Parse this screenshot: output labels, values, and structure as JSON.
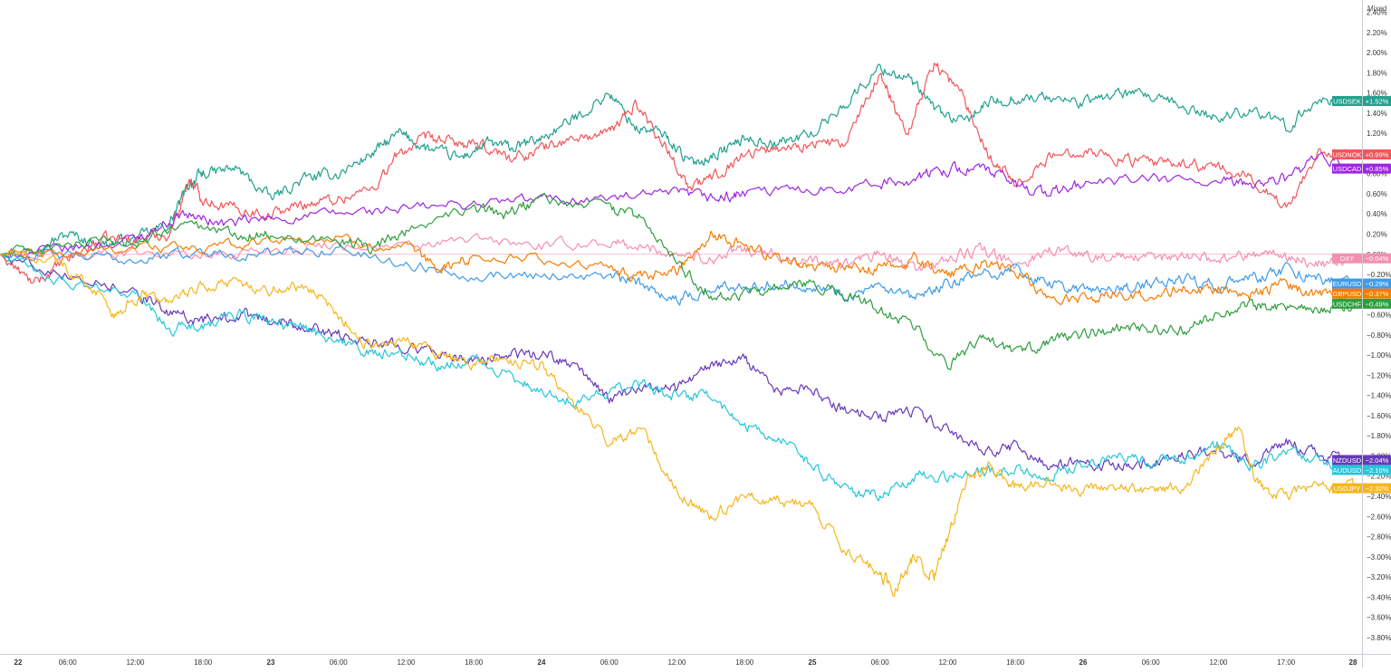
{
  "scale_mode_label": "Mixed",
  "chart_data": {
    "type": "line",
    "title": "",
    "ylabel": "",
    "xlabel": "",
    "y_unit": "%",
    "ylim": [
      -3.9,
      2.45
    ],
    "y_ticks": [
      2.4,
      2.2,
      2.0,
      1.8,
      1.6,
      1.4,
      1.2,
      1.0,
      0.8,
      0.6,
      0.4,
      0.2,
      0.0,
      -0.2,
      -0.4,
      -0.6,
      -0.8,
      -1.0,
      -1.2,
      -1.4,
      -1.6,
      -1.8,
      -2.0,
      -2.2,
      -2.4,
      -2.6,
      -2.8,
      -3.0,
      -3.2,
      -3.4,
      -3.6,
      -3.8
    ],
    "x_ticks": [
      "22",
      "06:00",
      "12:00",
      "18:00",
      "23",
      "06:00",
      "12:00",
      "18:00",
      "24",
      "06:00",
      "12:00",
      "18:00",
      "25",
      "06:00",
      "12:00",
      "18:00",
      "26",
      "06:00",
      "12:00",
      "17:00",
      "28"
    ],
    "x_tick_bold": [
      true,
      false,
      false,
      false,
      true,
      false,
      false,
      false,
      true,
      false,
      false,
      false,
      true,
      false,
      false,
      false,
      true,
      false,
      false,
      false,
      true
    ],
    "x_range": [
      0,
      20
    ],
    "grid": false,
    "zero_line": true,
    "series": [
      {
        "name": "USDSEK",
        "color": "#22a18e",
        "last_label": "+1.52%",
        "x": [
          0,
          0.5,
          1,
          1.5,
          2,
          2.5,
          2.8,
          3,
          3.5,
          4,
          4.5,
          5,
          5.5,
          5.9,
          6.3,
          6.8,
          7.2,
          7.6,
          8,
          8.5,
          9,
          9.4,
          9.8,
          10.2,
          10.6,
          11,
          11.5,
          12,
          12.5,
          13,
          13.4,
          13.8,
          14.2,
          14.6,
          15,
          15.5,
          16,
          16.5,
          17,
          17.5,
          18,
          18.5,
          19,
          19.5,
          20
        ],
        "y": [
          0,
          0.05,
          0.2,
          0.1,
          0.15,
          0.3,
          0.7,
          0.8,
          0.85,
          0.55,
          0.75,
          0.8,
          1.0,
          1.2,
          1.05,
          0.95,
          1.1,
          1.05,
          1.15,
          1.35,
          1.6,
          1.25,
          1.2,
          0.9,
          1.0,
          1.15,
          1.1,
          1.2,
          1.5,
          1.85,
          1.75,
          1.45,
          1.3,
          1.5,
          1.55,
          1.55,
          1.5,
          1.6,
          1.55,
          1.45,
          1.35,
          1.45,
          1.25,
          1.55,
          1.52
        ]
      },
      {
        "name": "USDNOK",
        "color": "#f0565a",
        "last_label": "+0.99%",
        "x": [
          0,
          0.5,
          1,
          1.5,
          2,
          2.5,
          2.8,
          3,
          3.5,
          4,
          4.5,
          5,
          5.5,
          5.9,
          6.3,
          6.8,
          7.2,
          7.6,
          8,
          8.5,
          9,
          9.4,
          9.8,
          10.2,
          10.6,
          11,
          11.5,
          12,
          12.5,
          13,
          13.4,
          13.8,
          14.2,
          14.6,
          15,
          15.5,
          16,
          16.5,
          17,
          17.5,
          18,
          18.5,
          19,
          19.5,
          20
        ],
        "y": [
          0,
          -0.3,
          -0.05,
          0.15,
          0.15,
          0.2,
          0.75,
          0.55,
          0.45,
          0.4,
          0.5,
          0.55,
          0.65,
          1.0,
          1.15,
          1.1,
          1.05,
          0.95,
          1.05,
          1.15,
          1.2,
          1.5,
          1.1,
          0.65,
          0.8,
          1.0,
          1.05,
          1.1,
          1.1,
          1.8,
          1.2,
          1.9,
          1.6,
          1.0,
          0.7,
          0.95,
          1.05,
          0.95,
          0.9,
          0.9,
          0.85,
          0.75,
          0.45,
          1.05,
          0.99
        ]
      },
      {
        "name": "USDCAD",
        "color": "#9c27e0",
        "last_label": "+0.85%",
        "x": [
          0,
          1,
          2,
          2.7,
          3.3,
          4,
          5,
          6,
          7,
          8,
          9,
          10,
          10.6,
          11,
          12,
          13,
          13.5,
          14,
          14.5,
          15,
          15.5,
          16,
          17,
          18,
          18.5,
          19,
          19.5,
          20
        ],
        "y": [
          0,
          0.05,
          0.15,
          0.4,
          0.3,
          0.35,
          0.4,
          0.45,
          0.5,
          0.55,
          0.55,
          0.6,
          0.55,
          0.6,
          0.65,
          0.7,
          0.75,
          0.85,
          0.85,
          0.7,
          0.6,
          0.7,
          0.75,
          0.7,
          0.7,
          0.75,
          0.95,
          0.85
        ]
      },
      {
        "name": "DXY",
        "color": "#f48fb1",
        "last_label": "-0.04%",
        "x": [
          0,
          1,
          2,
          3,
          4,
          5,
          6,
          7,
          8,
          9,
          9.5,
          10,
          10.5,
          11,
          11.5,
          12,
          12.5,
          13,
          13.5,
          14,
          14.5,
          15,
          15.5,
          16,
          16.5,
          17,
          17.5,
          18,
          18.5,
          19,
          19.5,
          20
        ],
        "y": [
          0,
          -0.02,
          0.04,
          -0.02,
          0.05,
          0.1,
          0.06,
          0.15,
          0.08,
          0.12,
          0.06,
          0.02,
          -0.05,
          0.05,
          -0.02,
          -0.08,
          -0.1,
          0.0,
          -0.15,
          -0.05,
          0.05,
          -0.12,
          0.05,
          0.0,
          -0.03,
          -0.05,
          0.0,
          -0.05,
          0.02,
          -0.02,
          -0.1,
          -0.04
        ]
      },
      {
        "name": "EURUSD",
        "color": "#3f9be6",
        "last_label": "-0.29%",
        "x": [
          0,
          1,
          2,
          3,
          4,
          5,
          6,
          7,
          8,
          9,
          9.5,
          10,
          10.5,
          11,
          11.5,
          12,
          12.5,
          13,
          13.5,
          14,
          14.5,
          15,
          15.5,
          16,
          16.5,
          17,
          17.5,
          18,
          18.5,
          19,
          19.5,
          20
        ],
        "y": [
          0,
          -0.02,
          -0.05,
          0.02,
          0.0,
          0.05,
          -0.1,
          -0.2,
          -0.2,
          -0.22,
          -0.3,
          -0.45,
          -0.35,
          -0.3,
          -0.3,
          -0.3,
          -0.4,
          -0.35,
          -0.45,
          -0.3,
          -0.2,
          -0.15,
          -0.3,
          -0.35,
          -0.35,
          -0.3,
          -0.25,
          -0.3,
          -0.25,
          -0.15,
          -0.25,
          -0.29
        ]
      },
      {
        "name": "GBPUSD",
        "color": "#f57c00",
        "last_label": "-0.37%",
        "x": [
          0,
          1,
          2,
          3,
          4,
          5,
          6,
          6.5,
          7,
          8,
          9,
          9.5,
          10,
          10.5,
          11,
          11.5,
          12,
          12.5,
          13,
          13.5,
          14,
          14.5,
          15,
          15.5,
          16,
          16.5,
          17,
          17.5,
          18,
          18.5,
          19,
          19.5,
          20
        ],
        "y": [
          0,
          0.0,
          0.08,
          0.05,
          0.15,
          0.15,
          0.05,
          -0.15,
          -0.02,
          -0.05,
          -0.15,
          -0.25,
          -0.15,
          0.2,
          0.1,
          -0.05,
          -0.1,
          -0.15,
          -0.15,
          -0.05,
          -0.2,
          -0.1,
          -0.15,
          -0.45,
          -0.45,
          -0.4,
          -0.4,
          -0.35,
          -0.35,
          -0.4,
          -0.3,
          -0.4,
          -0.37
        ]
      },
      {
        "name": "USDCHF",
        "color": "#2e9e3e",
        "last_label": "-0.49%",
        "x": [
          0,
          1,
          2,
          2.7,
          3.5,
          4,
          5,
          5.5,
          6,
          7,
          7.5,
          8,
          9,
          9.5,
          10,
          10.5,
          11,
          11.5,
          12,
          12.5,
          13,
          13.5,
          14,
          14.5,
          15,
          15.5,
          16,
          16.5,
          17,
          17.5,
          18,
          18.5,
          19,
          19.5,
          20
        ],
        "y": [
          0,
          0.1,
          0.1,
          0.3,
          0.2,
          0.2,
          0.15,
          0.05,
          0.25,
          0.45,
          0.4,
          0.55,
          0.45,
          0.35,
          -0.1,
          -0.4,
          -0.4,
          -0.35,
          -0.3,
          -0.4,
          -0.55,
          -0.7,
          -1.1,
          -0.85,
          -1.0,
          -0.85,
          -0.8,
          -0.75,
          -0.75,
          -0.75,
          -0.6,
          -0.5,
          -0.55,
          -0.55,
          -0.49
        ]
      },
      {
        "name": "NZDUSD",
        "color": "#673ab7",
        "last_label": "-2.04%",
        "x": [
          0,
          1,
          2,
          2.5,
          3,
          3.5,
          4,
          4.5,
          5,
          5.5,
          6,
          6.5,
          7,
          7.5,
          8,
          8.5,
          9,
          9.5,
          10,
          10.5,
          11,
          11.5,
          12,
          12.5,
          13,
          13.5,
          14,
          14.5,
          15,
          15.5,
          16,
          16.5,
          17,
          17.5,
          18,
          18.5,
          19,
          19.5,
          20
        ],
        "y": [
          0,
          -0.2,
          -0.35,
          -0.6,
          -0.65,
          -0.6,
          -0.65,
          -0.7,
          -0.8,
          -0.85,
          -0.9,
          -1.0,
          -1.05,
          -1.0,
          -1.0,
          -1.1,
          -1.45,
          -1.3,
          -1.35,
          -1.1,
          -1.05,
          -1.35,
          -1.35,
          -1.55,
          -1.6,
          -1.55,
          -1.75,
          -1.95,
          -1.9,
          -2.1,
          -2.05,
          -2.1,
          -2.05,
          -2.0,
          -1.95,
          -2.05,
          -1.85,
          -2.0,
          -2.04
        ]
      },
      {
        "name": "AUDUSD",
        "color": "#26c6da",
        "last_label": "-2.10%",
        "x": [
          0,
          1,
          2,
          2.5,
          3,
          3.5,
          4,
          4.5,
          5,
          5.5,
          6,
          6.5,
          7,
          7.5,
          8,
          8.5,
          9,
          9.5,
          10,
          10.5,
          11,
          11.5,
          12,
          12.5,
          13,
          13.5,
          14,
          14.5,
          15,
          15.5,
          16,
          16.5,
          17,
          17.5,
          18,
          18.5,
          19,
          19.5,
          20
        ],
        "y": [
          0,
          -0.3,
          -0.4,
          -0.75,
          -0.7,
          -0.6,
          -0.65,
          -0.75,
          -0.85,
          -1.0,
          -1.0,
          -1.1,
          -1.05,
          -1.2,
          -1.35,
          -1.45,
          -1.35,
          -1.3,
          -1.4,
          -1.4,
          -1.7,
          -1.8,
          -2.1,
          -2.35,
          -2.4,
          -2.2,
          -2.2,
          -2.15,
          -2.15,
          -2.2,
          -2.1,
          -2.0,
          -2.05,
          -2.0,
          -1.9,
          -2.1,
          -1.95,
          -2.05,
          -2.1
        ]
      },
      {
        "name": "USDJPY",
        "color": "#f5b61c",
        "last_label": "-2.32%",
        "x": [
          0,
          0.8,
          1.3,
          1.7,
          2.1,
          2.5,
          3,
          3.5,
          4,
          4.5,
          5,
          5.5,
          6,
          6.5,
          7,
          7.5,
          8,
          8.5,
          9,
          9.5,
          10,
          10.5,
          11,
          11.5,
          12,
          12.5,
          13,
          13.2,
          13.5,
          13.8,
          14,
          14.3,
          14.6,
          15,
          15.5,
          16,
          16.5,
          17,
          17.5,
          18,
          18.3,
          18.6,
          19,
          19.5,
          20
        ],
        "y": [
          0,
          -0.05,
          -0.3,
          -0.6,
          -0.4,
          -0.5,
          -0.3,
          -0.3,
          -0.35,
          -0.3,
          -0.6,
          -0.95,
          -0.85,
          -1.0,
          -1.1,
          -1.05,
          -1.1,
          -1.5,
          -1.85,
          -1.75,
          -2.35,
          -2.6,
          -2.4,
          -2.45,
          -2.5,
          -2.95,
          -3.15,
          -3.35,
          -3.0,
          -3.2,
          -2.8,
          -2.25,
          -2.1,
          -2.3,
          -2.25,
          -2.35,
          -2.3,
          -2.35,
          -2.3,
          -1.9,
          -1.75,
          -2.3,
          -2.4,
          -2.3,
          -2.32
        ]
      }
    ]
  }
}
